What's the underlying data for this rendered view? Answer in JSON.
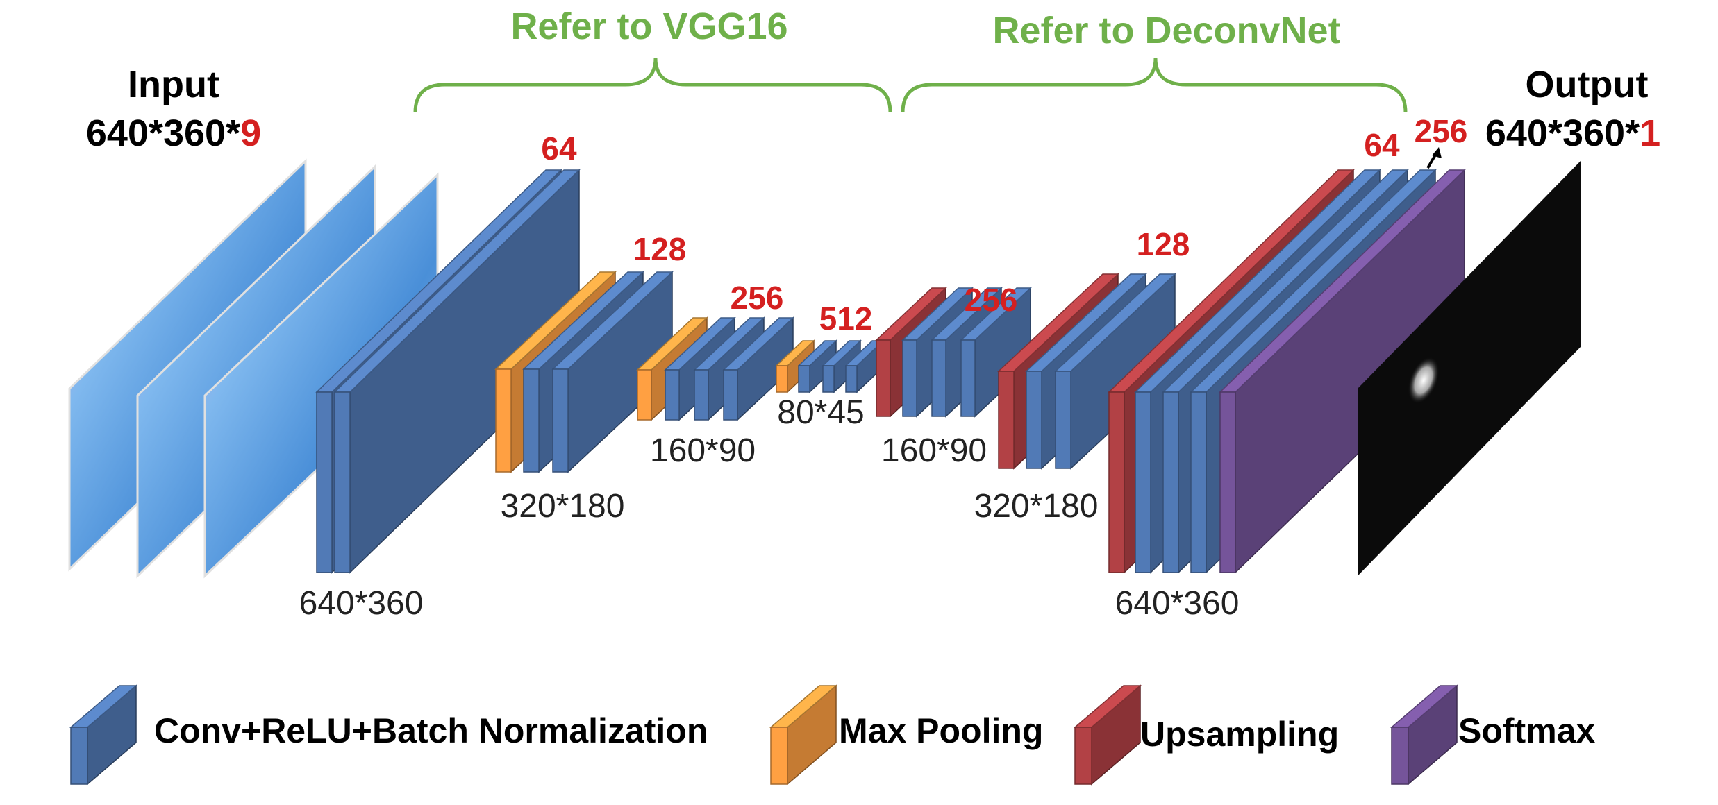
{
  "headers": {
    "vgg": "Refer to VGG16",
    "deconv": "Refer to DeconvNet"
  },
  "input": {
    "title": "Input",
    "dims_prefix": "640*360*",
    "channels": "9"
  },
  "output": {
    "title": "Output",
    "dims_prefix": "640*360*",
    "channels": "1"
  },
  "channel_labels": {
    "enc1": "64",
    "enc2": "128",
    "enc3": "256",
    "enc4": "512",
    "dec3": "256",
    "dec2": "128",
    "dec1": "64",
    "dec1b": "256"
  },
  "size_labels": {
    "enc1": "640*360",
    "enc2": "320*180",
    "enc3": "160*90",
    "enc4": "80*45",
    "dec3": "160*90",
    "dec2": "320*180",
    "dec1": "640*360"
  },
  "legend": {
    "conv": "Conv+ReLU+Batch Normalization",
    "pool": "Max Pooling",
    "upsample": "Upsampling",
    "softmax": "Softmax"
  },
  "colors": {
    "conv": "#4a6fa5",
    "pool": "#e8913c",
    "upsample": "#a23b3f",
    "softmax": "#6a4c8c",
    "header_green": "#6fb04a",
    "channel_red": "#d42020"
  }
}
